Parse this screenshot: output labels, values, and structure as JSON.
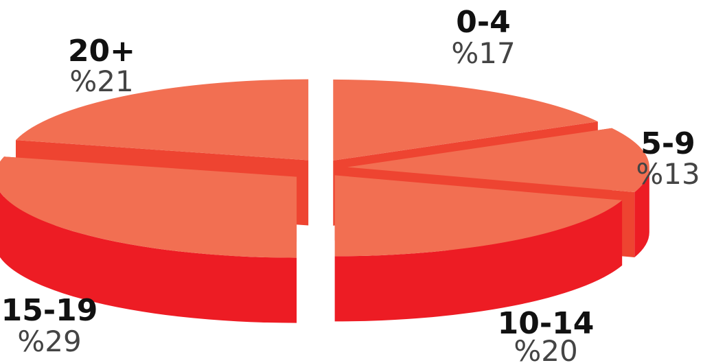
{
  "chart_data": {
    "type": "pie",
    "style": "3d-exploded",
    "categories": [
      "0-4",
      "5-9",
      "10-14",
      "15-19",
      "20+"
    ],
    "values": [
      17,
      13,
      20,
      29,
      21
    ],
    "value_labels": [
      "%17",
      "%13",
      "%20",
      "%29",
      "%21"
    ],
    "colors": {
      "top": "#f26f52",
      "side_front": "#ed1c24",
      "side_cut": "#ee4431"
    },
    "legend": "none"
  }
}
